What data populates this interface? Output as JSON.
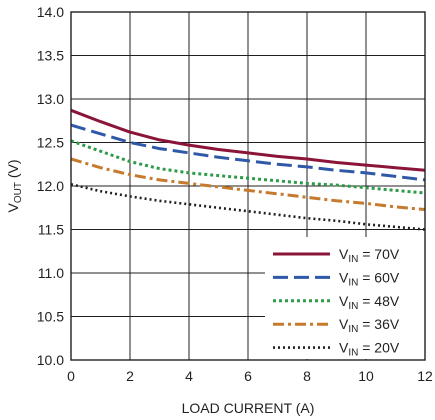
{
  "chart_data": {
    "type": "line",
    "title": "",
    "xlabel": "LOAD CURRENT (A)",
    "ylabel": {
      "main": "V",
      "sub": "OUT",
      "unit": " (V)"
    },
    "xlim": [
      0,
      12
    ],
    "ylim": [
      10.0,
      14.0
    ],
    "xticks": [
      "0",
      "2",
      "4",
      "6",
      "8",
      "10",
      "12"
    ],
    "yticks": [
      "10.0",
      "10.5",
      "11.0",
      "11.5",
      "12.0",
      "12.5",
      "13.0",
      "13.5",
      "14.0"
    ],
    "grid": true,
    "legend_position": "bottom-right",
    "series": [
      {
        "name": "V_IN = 70V",
        "label_main": "V",
        "label_sub": "IN",
        "label_rest": " = 70V",
        "color": "#8b1538",
        "dash": "solid",
        "x": [
          0,
          1,
          2,
          3,
          4,
          5,
          6,
          7,
          8,
          9,
          10,
          11,
          12
        ],
        "y": [
          12.87,
          12.74,
          12.62,
          12.53,
          12.47,
          12.42,
          12.38,
          12.34,
          12.31,
          12.27,
          12.24,
          12.21,
          12.18
        ]
      },
      {
        "name": "V_IN = 60V",
        "label_main": "V",
        "label_sub": "IN",
        "label_rest": " = 60V",
        "color": "#2f59a8",
        "dash": "long",
        "x": [
          0,
          1,
          2,
          3,
          4,
          5,
          6,
          7,
          8,
          9,
          10,
          11,
          12
        ],
        "y": [
          12.7,
          12.6,
          12.5,
          12.43,
          12.38,
          12.33,
          12.29,
          12.25,
          12.22,
          12.18,
          12.15,
          12.11,
          12.07
        ]
      },
      {
        "name": "V_IN = 48V",
        "label_main": "V",
        "label_sub": "IN",
        "label_rest": " = 48V",
        "color": "#2e9b48",
        "dash": "dotted",
        "x": [
          0,
          1,
          2,
          3,
          4,
          5,
          6,
          7,
          8,
          9,
          10,
          11,
          12
        ],
        "y": [
          12.52,
          12.4,
          12.28,
          12.2,
          12.15,
          12.12,
          12.09,
          12.06,
          12.03,
          12.01,
          11.98,
          11.95,
          11.92
        ]
      },
      {
        "name": "V_IN = 36V",
        "label_main": "V",
        "label_sub": "IN",
        "label_rest": " = 36V",
        "color": "#c57a2e",
        "dash": "dashdot",
        "x": [
          0,
          1,
          2,
          3,
          4,
          5,
          6,
          7,
          8,
          9,
          10,
          11,
          12
        ],
        "y": [
          12.31,
          12.21,
          12.13,
          12.07,
          12.03,
          11.99,
          11.95,
          11.91,
          11.87,
          11.83,
          11.8,
          11.76,
          11.73
        ]
      },
      {
        "name": "V_IN = 20V",
        "label_main": "V",
        "label_sub": "IN",
        "label_rest": " = 20V",
        "color": "#231f20",
        "dash": "fine",
        "x": [
          0,
          1,
          2,
          3,
          4,
          5,
          6,
          7,
          8,
          9,
          10,
          11,
          12
        ],
        "y": [
          12.02,
          11.94,
          11.88,
          11.83,
          11.79,
          11.75,
          11.71,
          11.67,
          11.63,
          11.6,
          11.56,
          11.53,
          11.5
        ]
      }
    ]
  }
}
